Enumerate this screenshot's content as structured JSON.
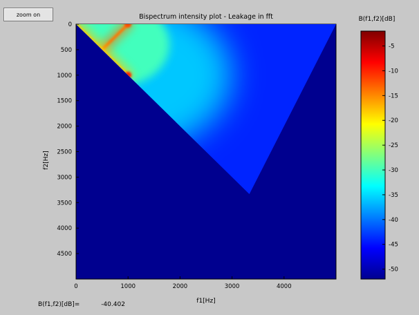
{
  "toolbar": {
    "zoom_label": "zoom on"
  },
  "readout": {
    "label": "B(f1,f2)[dB]=",
    "value": "-40.402"
  },
  "chart_data": {
    "type": "heatmap",
    "title": "Bispectrum intensity plot - Leakage in fft",
    "xlabel": "f1[Hz]",
    "ylabel": "f2[Hz]",
    "x_ticks": [
      0,
      1000,
      2000,
      3000,
      4000
    ],
    "y_ticks": [
      0,
      500,
      1000,
      1500,
      2000,
      2500,
      3000,
      3500,
      4000,
      4500
    ],
    "xlim": [
      0,
      5000
    ],
    "ylim": [
      0,
      5000
    ],
    "y_reversed": true,
    "colorbar": {
      "label": "B(f1,f2)[dB]",
      "ticks": [
        -5,
        -10,
        -15,
        -20,
        -25,
        -30,
        -35,
        -40,
        -45,
        -50
      ],
      "range": [
        -52,
        -2
      ],
      "colormap": "jet"
    },
    "background_value_db": -52,
    "region_vertices": [
      [
        0,
        0
      ],
      [
        5000,
        0
      ],
      [
        3333,
        3333
      ]
    ],
    "peaks": [
      {
        "f1": 1000,
        "f2": 1000,
        "value_db": -10
      },
      {
        "f1": 1000,
        "f2": 0,
        "value_db": -12
      }
    ],
    "ridges": [
      {
        "from": [
          1000,
          0
        ],
        "to": [
          1000,
          1000
        ],
        "value_db": -14
      },
      {
        "from": [
          1000,
          1000
        ],
        "to": [
          4600,
          1000
        ],
        "value_db": -33
      },
      {
        "from": [
          1000,
          0
        ],
        "to": [
          500,
          500
        ],
        "value_db": -14
      },
      {
        "from": [
          0,
          0
        ],
        "to": [
          1000,
          1000
        ],
        "value_db": -18
      }
    ]
  },
  "colors": {
    "figure_bg": "#c8c8c8",
    "axes_bg": "#00008f"
  }
}
